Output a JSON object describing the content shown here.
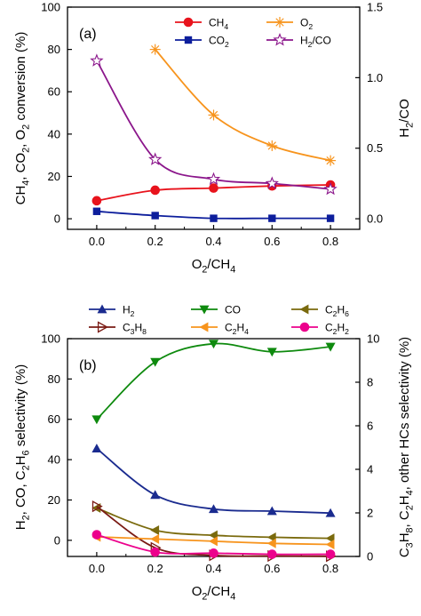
{
  "chart_data": [
    {
      "type": "line",
      "panel_label": "(a)",
      "xlabel": "O2/CH4",
      "ylabel": "CH4, CO2, O2 conversion (%)",
      "y2label": "H2/CO",
      "xlim": [
        -0.1,
        0.9
      ],
      "ylim": [
        -5,
        100
      ],
      "y2lim": [
        -0.075,
        1.5
      ],
      "xticks": [
        "0.0",
        "0.2",
        "0.4",
        "0.6",
        "0.8"
      ],
      "yticks": [
        "0",
        "20",
        "40",
        "60",
        "80",
        "100"
      ],
      "y2ticks": [
        "0.0",
        "0.5",
        "1.0",
        "1.5"
      ],
      "legend_position": "top-right",
      "series": [
        {
          "name": "CH4",
          "axis": "left",
          "color": "#e8131c",
          "marker": "circle",
          "x": [
            0.0,
            0.2,
            0.4,
            0.6,
            0.8
          ],
          "values": [
            8.5,
            13.5,
            14.5,
            15.5,
            16.0
          ]
        },
        {
          "name": "O2",
          "axis": "left",
          "color": "#f7941d",
          "marker": "asterisk",
          "x": [
            0.2,
            0.4,
            0.6,
            0.8
          ],
          "values": [
            80.0,
            49.0,
            34.5,
            27.5
          ]
        },
        {
          "name": "CO2",
          "axis": "left",
          "color": "#0d1e9c",
          "marker": "square",
          "x": [
            0.0,
            0.2,
            0.4,
            0.6,
            0.8
          ],
          "values": [
            3.5,
            1.5,
            0.2,
            0.2,
            0.2
          ]
        },
        {
          "name": "H2/CO",
          "axis": "right",
          "color": "#8b168b",
          "marker": "star",
          "x": [
            0.0,
            0.2,
            0.4,
            0.6,
            0.8
          ],
          "values": [
            1.12,
            0.42,
            0.28,
            0.25,
            0.21
          ]
        }
      ]
    },
    {
      "type": "line",
      "panel_label": "(b)",
      "xlabel": "O2/CH4",
      "ylabel": "H2, CO, C2H6 selectivity (%)",
      "y2label": "C3H8, C2H4, other HCs selectivity (%)",
      "xlim": [
        -0.1,
        0.9
      ],
      "ylim": [
        -8,
        100
      ],
      "y2lim": [
        0,
        10
      ],
      "xticks": [
        "0.0",
        "0.2",
        "0.4",
        "0.6",
        "0.8"
      ],
      "yticks": [
        "0",
        "20",
        "40",
        "60",
        "80",
        "100"
      ],
      "y2ticks": [
        "0",
        "2",
        "4",
        "6",
        "8",
        "10"
      ],
      "legend_position": "top",
      "series": [
        {
          "name": "H2",
          "axis": "left",
          "color": "#1a2b8f",
          "marker": "triangle-up",
          "x": [
            0.0,
            0.2,
            0.4,
            0.6,
            0.8
          ],
          "values": [
            45.5,
            22.5,
            15.5,
            14.5,
            13.5
          ]
        },
        {
          "name": "CO",
          "axis": "left",
          "color": "#0e8a0e",
          "marker": "triangle-down",
          "x": [
            0.0,
            0.2,
            0.4,
            0.6,
            0.8
          ],
          "values": [
            60.0,
            88.5,
            97.5,
            93.5,
            96.0
          ]
        },
        {
          "name": "C2H6",
          "axis": "left",
          "color": "#7a6a0d",
          "marker": "triangle-left",
          "x": [
            0.0,
            0.2,
            0.4,
            0.6,
            0.8
          ],
          "values": [
            16.0,
            5.0,
            2.5,
            1.5,
            1.0
          ]
        },
        {
          "name": "C3H8",
          "axis": "right",
          "color": "#7a1b14",
          "marker": "triangle-right",
          "x": [
            0.0,
            0.2,
            0.4,
            0.6,
            0.8
          ],
          "values": [
            2.3,
            0.4,
            0.05,
            0.02,
            0.01
          ]
        },
        {
          "name": "C2H4",
          "axis": "right",
          "color": "#f7941d",
          "marker": "triangle-left",
          "x": [
            0.0,
            0.2,
            0.4,
            0.6,
            0.8
          ],
          "values": [
            0.9,
            0.8,
            0.7,
            0.6,
            0.55
          ]
        },
        {
          "name": "C2H2",
          "axis": "right",
          "color": "#ec008c",
          "marker": "circle",
          "x": [
            0.0,
            0.2,
            0.4,
            0.6,
            0.8
          ],
          "values": [
            1.0,
            0.2,
            0.15,
            0.1,
            0.1
          ]
        }
      ]
    }
  ]
}
